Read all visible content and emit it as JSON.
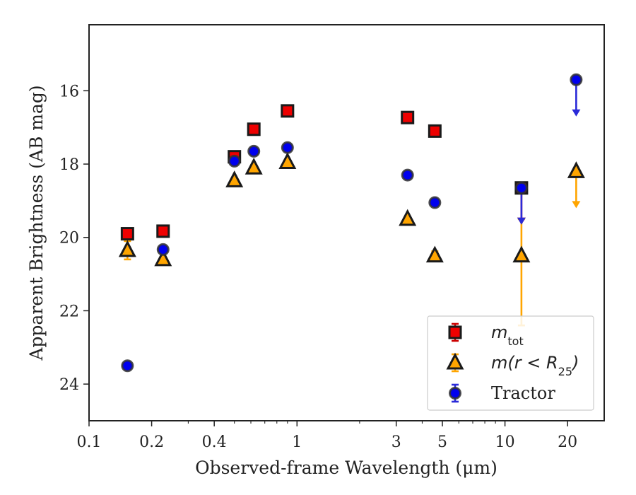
{
  "chart_data": {
    "type": "scatter",
    "xlabel": "Observed-frame Wavelength (μm)",
    "ylabel": "Apparent Brightness (AB mag)",
    "x_scale": "log",
    "y_inverted": true,
    "xlim": [
      0.1,
      30
    ],
    "ylim": [
      25,
      14.2
    ],
    "xticks": [
      0.1,
      0.2,
      0.4,
      1,
      3,
      5,
      10,
      20
    ],
    "xtick_labels": [
      "0.1",
      "0.2",
      "0.4",
      "1",
      "3",
      "5",
      "10",
      "20"
    ],
    "yticks": [
      16,
      18,
      20,
      22,
      24
    ],
    "ytick_labels": [
      "16",
      "18",
      "20",
      "22",
      "24"
    ],
    "grid": false,
    "legend_position": "bottom-right",
    "series": [
      {
        "name": "m_tot",
        "legend_main": "m",
        "legend_sub": "tot",
        "marker": "square",
        "face_color": "#ee0000",
        "edge_color": "#1a1a1a",
        "err_color": "#cc0000",
        "points": [
          {
            "x": 0.153,
            "y": 19.9
          },
          {
            "x": 0.227,
            "y": 19.83
          },
          {
            "x": 0.5,
            "y": 17.8
          },
          {
            "x": 0.62,
            "y": 17.05
          },
          {
            "x": 0.9,
            "y": 16.55
          },
          {
            "x": 3.4,
            "y": 16.73
          },
          {
            "x": 4.6,
            "y": 17.1
          },
          {
            "x": 12.0,
            "y": 18.65,
            "upper_limit": true
          }
        ]
      },
      {
        "name": "m(r < R25)",
        "legend_main": "m(r < R",
        "legend_sub": "25",
        "legend_close": ")",
        "marker": "triangle",
        "face_color": "#ffa500",
        "edge_color": "#1a1a1a",
        "err_color": "#ffa500",
        "points": [
          {
            "x": 0.153,
            "y": 20.35,
            "yerr": 0.25
          },
          {
            "x": 0.227,
            "y": 20.6
          },
          {
            "x": 0.5,
            "y": 18.45
          },
          {
            "x": 0.62,
            "y": 18.1
          },
          {
            "x": 0.9,
            "y": 17.95
          },
          {
            "x": 3.4,
            "y": 19.5
          },
          {
            "x": 4.6,
            "y": 20.5,
            "yerr": 0.12
          },
          {
            "x": 12.0,
            "y": 20.5,
            "yerr_low": 1.9,
            "yerr_high": 1.0
          },
          {
            "x": 22.0,
            "y": 18.2,
            "upper_limit": true
          }
        ]
      },
      {
        "name": "Tractor",
        "legend_main": "Tractor",
        "marker": "circle",
        "face_color": "#0000ee",
        "edge_color": "#333333",
        "err_color": "#2a2ad8",
        "points": [
          {
            "x": 0.153,
            "y": 23.5
          },
          {
            "x": 0.227,
            "y": 20.33
          },
          {
            "x": 0.5,
            "y": 17.92
          },
          {
            "x": 0.62,
            "y": 17.65
          },
          {
            "x": 0.9,
            "y": 17.55
          },
          {
            "x": 3.4,
            "y": 18.3
          },
          {
            "x": 4.6,
            "y": 19.05
          },
          {
            "x": 12.0,
            "y": 18.65,
            "upper_limit": true
          },
          {
            "x": 22.0,
            "y": 15.7,
            "upper_limit": true
          }
        ]
      }
    ]
  }
}
